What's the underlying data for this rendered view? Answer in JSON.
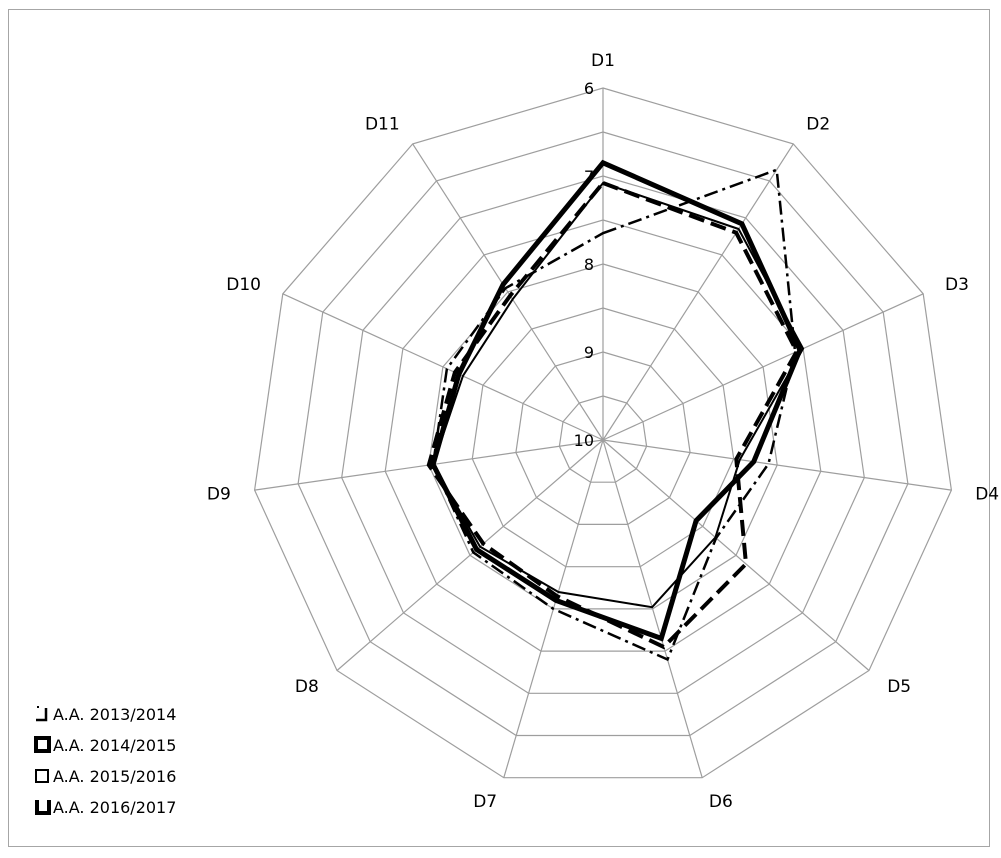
{
  "chart_data": {
    "type": "radar",
    "title": "",
    "axes": [
      "D1",
      "D2",
      "D3",
      "D4",
      "D5",
      "D6",
      "D7",
      "D8",
      "D9",
      "D10",
      "D11"
    ],
    "r_ticks": [
      "6",
      "7",
      "8",
      "9",
      "10"
    ],
    "r_range": [
      10,
      6
    ],
    "grid": true,
    "legend_position": "bottom-left",
    "series": [
      {
        "name": "A.A. 2013/2014",
        "style": "dashdot",
        "color": "#000000",
        "values": [
          7.65,
          6.35,
          7.6,
          8.1,
          8.3,
          7.4,
          8.0,
          8.05,
          8.05,
          8.05,
          7.95
        ]
      },
      {
        "name": "A.A. 2014/2015",
        "style": "thick",
        "color": "#000000",
        "values": [
          6.85,
          7.08,
          7.54,
          8.27,
          8.6,
          7.65,
          8.1,
          8.1,
          8.05,
          8.2,
          7.9
        ]
      },
      {
        "name": "A.A. 2015/2016",
        "style": "solid",
        "color": "#000000",
        "values": [
          7.08,
          7.15,
          7.5,
          8.43,
          8.31,
          8.02,
          8.2,
          8.15,
          8.05,
          8.25,
          8.1
        ]
      },
      {
        "name": "A.A. 2016/2017",
        "style": "dashed",
        "color": "#000000",
        "values": [
          7.08,
          7.2,
          7.58,
          8.47,
          7.85,
          7.55,
          8.15,
          8.2,
          8.0,
          8.15,
          8.05
        ]
      }
    ]
  }
}
